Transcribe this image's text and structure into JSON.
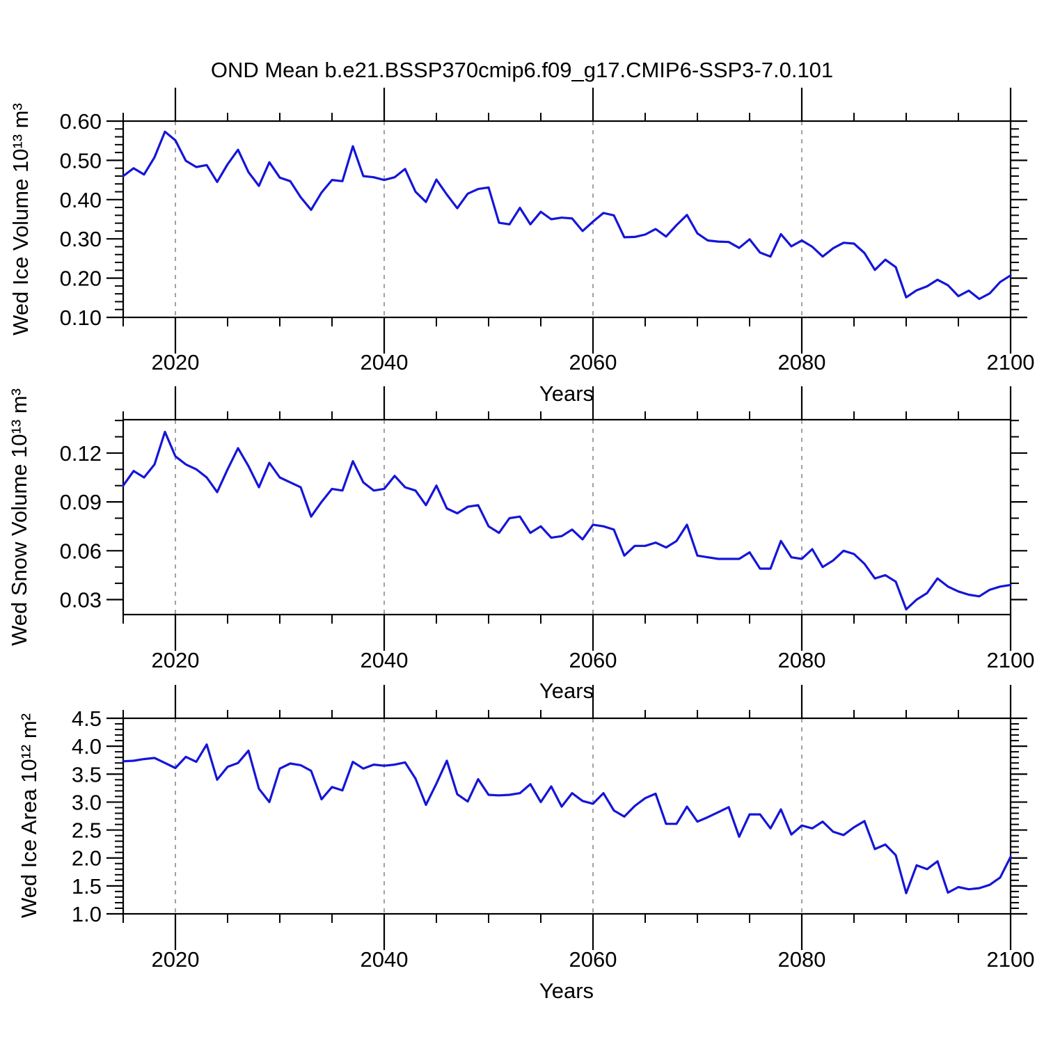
{
  "title": "OND Mean b.e21.BSSP370cmip6.f09_g17.CMIP6-SSP3-7.0.101",
  "line_color": "#1515d8",
  "grid_color": "#8a8a8a",
  "frame_color": "#000000",
  "chart_data": [
    {
      "type": "line",
      "ylabel": "Wed Ice Volume 10¹³ m³",
      "xlabel": "Years",
      "legend": "none",
      "grid": "vertical-dashed",
      "x_start": 2015,
      "x_end": 2100,
      "x_step": 1,
      "xlim": [
        2015,
        2100
      ],
      "ylim": [
        0.1,
        0.6
      ],
      "x_tick_values": [
        2020,
        2040,
        2060,
        2080,
        2100
      ],
      "x_tick_labels": [
        "2020",
        "2040",
        "2060",
        "2080",
        "2100"
      ],
      "x_minor_step": 5,
      "gridlines_at": [
        2020,
        2040,
        2060,
        2080
      ],
      "y_tick_values": [
        0.1,
        0.2,
        0.3,
        0.4,
        0.5,
        0.6
      ],
      "y_tick_labels": [
        "0.10",
        "0.20",
        "0.30",
        "0.40",
        "0.50",
        "0.60"
      ],
      "y_minor_step": 0.02,
      "values": [
        0.46,
        0.48,
        0.464,
        0.508,
        0.573,
        0.551,
        0.499,
        0.483,
        0.488,
        0.445,
        0.49,
        0.527,
        0.47,
        0.435,
        0.495,
        0.456,
        0.447,
        0.406,
        0.374,
        0.418,
        0.45,
        0.447,
        0.536,
        0.46,
        0.457,
        0.45,
        0.457,
        0.478,
        0.42,
        0.394,
        0.451,
        0.413,
        0.378,
        0.415,
        0.427,
        0.431,
        0.341,
        0.337,
        0.379,
        0.337,
        0.369,
        0.35,
        0.354,
        0.352,
        0.32,
        0.344,
        0.366,
        0.36,
        0.304,
        0.305,
        0.311,
        0.325,
        0.306,
        0.335,
        0.361,
        0.314,
        0.296,
        0.293,
        0.292,
        0.277,
        0.299,
        0.265,
        0.255,
        0.312,
        0.281,
        0.296,
        0.28,
        0.255,
        0.276,
        0.29,
        0.288,
        0.264,
        0.221,
        0.247,
        0.228,
        0.151,
        0.169,
        0.179,
        0.196,
        0.182,
        0.154,
        0.168,
        0.147,
        0.161,
        0.19,
        0.207
      ]
    },
    {
      "type": "line",
      "ylabel": "Wed Snow Volume 10¹³ m³",
      "xlabel": "Years",
      "legend": "none",
      "grid": "vertical-dashed",
      "x_start": 2015,
      "x_end": 2100,
      "x_step": 1,
      "xlim": [
        2015,
        2100
      ],
      "ylim": [
        0.0208,
        0.1405
      ],
      "x_tick_values": [
        2020,
        2040,
        2060,
        2080,
        2100
      ],
      "x_tick_labels": [
        "2020",
        "2040",
        "2060",
        "2080",
        "2100"
      ],
      "x_minor_step": 5,
      "gridlines_at": [
        2020,
        2040,
        2060,
        2080
      ],
      "y_tick_values": [
        0.03,
        0.06,
        0.09,
        0.12
      ],
      "y_tick_labels": [
        "0.03",
        "0.06",
        "0.09",
        "0.12"
      ],
      "y_minor_step": 0.01,
      "values": [
        0.1,
        0.109,
        0.105,
        0.113,
        0.133,
        0.118,
        0.113,
        0.11,
        0.105,
        0.096,
        0.11,
        0.123,
        0.112,
        0.099,
        0.114,
        0.105,
        0.102,
        0.099,
        0.081,
        0.09,
        0.098,
        0.097,
        0.115,
        0.102,
        0.097,
        0.098,
        0.106,
        0.099,
        0.097,
        0.088,
        0.1,
        0.086,
        0.083,
        0.087,
        0.088,
        0.075,
        0.071,
        0.08,
        0.081,
        0.071,
        0.075,
        0.068,
        0.069,
        0.073,
        0.067,
        0.076,
        0.075,
        0.073,
        0.057,
        0.063,
        0.063,
        0.065,
        0.062,
        0.066,
        0.076,
        0.057,
        0.056,
        0.055,
        0.055,
        0.055,
        0.059,
        0.049,
        0.049,
        0.066,
        0.056,
        0.055,
        0.061,
        0.05,
        0.054,
        0.06,
        0.058,
        0.052,
        0.043,
        0.045,
        0.041,
        0.024,
        0.03,
        0.034,
        0.043,
        0.038,
        0.035,
        0.033,
        0.032,
        0.036,
        0.038,
        0.039
      ]
    },
    {
      "type": "line",
      "ylabel": "Wed Ice Area 10¹² m²",
      "xlabel": "Years",
      "legend": "none",
      "grid": "vertical-dashed",
      "x_start": 2015,
      "x_end": 2100,
      "x_step": 1,
      "xlim": [
        2015,
        2100
      ],
      "ylim": [
        1.0,
        4.5
      ],
      "x_tick_values": [
        2020,
        2040,
        2060,
        2080,
        2100
      ],
      "x_tick_labels": [
        "2020",
        "2040",
        "2060",
        "2080",
        "2100"
      ],
      "x_minor_step": 5,
      "gridlines_at": [
        2020,
        2040,
        2060,
        2080
      ],
      "y_tick_values": [
        1.0,
        1.5,
        2.0,
        2.5,
        3.0,
        3.5,
        4.0,
        4.5
      ],
      "y_tick_labels": [
        "1.0",
        "1.5",
        "2.0",
        "2.5",
        "3.0",
        "3.5",
        "4.0",
        "4.5"
      ],
      "y_minor_step": 0.1,
      "values": [
        3.73,
        3.74,
        3.77,
        3.79,
        3.7,
        3.61,
        3.81,
        3.72,
        4.03,
        3.4,
        3.63,
        3.7,
        3.92,
        3.24,
        3.0,
        3.6,
        3.69,
        3.66,
        3.56,
        3.05,
        3.27,
        3.21,
        3.72,
        3.6,
        3.67,
        3.65,
        3.67,
        3.71,
        3.42,
        2.95,
        3.33,
        3.74,
        3.14,
        3.01,
        3.41,
        3.13,
        3.12,
        3.13,
        3.16,
        3.32,
        3.0,
        3.28,
        2.92,
        3.16,
        3.02,
        2.97,
        3.16,
        2.85,
        2.74,
        2.93,
        3.07,
        3.15,
        2.61,
        2.61,
        2.92,
        2.65,
        2.73,
        2.82,
        2.91,
        2.38,
        2.78,
        2.78,
        2.53,
        2.87,
        2.42,
        2.58,
        2.53,
        2.65,
        2.47,
        2.41,
        2.55,
        2.66,
        2.16,
        2.24,
        2.05,
        1.37,
        1.87,
        1.8,
        1.94,
        1.38,
        1.48,
        1.44,
        1.46,
        1.52,
        1.65,
        2.02
      ]
    }
  ]
}
